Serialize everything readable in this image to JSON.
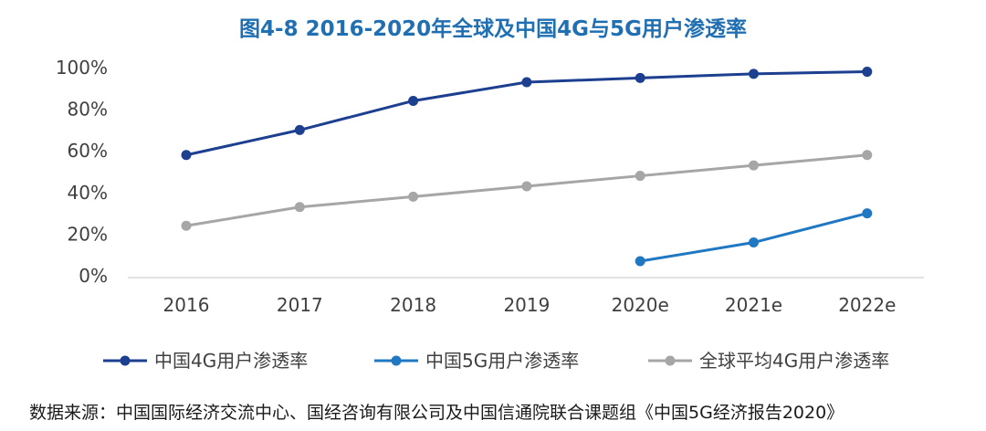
{
  "chart_data": {
    "type": "line",
    "title": "图4-8 2016-2020年全球及中国4G与5G用户渗透率",
    "categories": [
      "2016",
      "2017",
      "2018",
      "2019",
      "2020e",
      "2021e",
      "2022e"
    ],
    "y_ticks": [
      "0%",
      "20%",
      "40%",
      "60%",
      "80%",
      "100%"
    ],
    "ylim": [
      0,
      100
    ],
    "grid": false,
    "legend_position": "bottom",
    "series": [
      {
        "name": "中国4G用户渗透率",
        "color": "#1d3f8f",
        "values": [
          58,
          70,
          84,
          93,
          95,
          97,
          98
        ]
      },
      {
        "name": "中国5G用户渗透率",
        "color": "#1f78c1",
        "values": [
          null,
          null,
          null,
          null,
          7,
          16,
          30
        ]
      },
      {
        "name": "全球平均4G用户渗透率",
        "color": "#a6a6a6",
        "values": [
          24,
          33,
          38,
          43,
          48,
          53,
          58
        ]
      }
    ]
  },
  "source": "数据来源：中国国际经济交流中心、国经咨询有限公司及中国信通院联合课题组《中国5G经济报告2020》"
}
